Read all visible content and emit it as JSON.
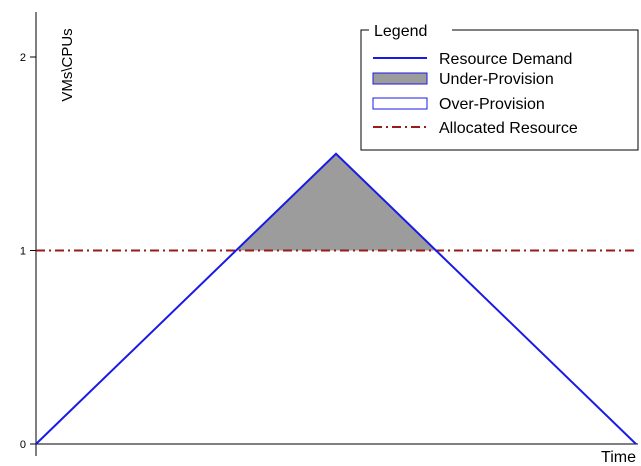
{
  "chart_data": {
    "type": "area",
    "title": "",
    "xlabel": "Time",
    "ylabel": "VMs\\CPUs",
    "ylim": [
      0,
      2.2
    ],
    "yticks": [
      0,
      1,
      2
    ],
    "grid": false,
    "legend_position": "top-right",
    "legend_title": "Legend",
    "legend_entries": [
      "Resource Demand",
      "Under-Provision",
      "Over-Provision",
      "Allocated Resource"
    ],
    "demand": {
      "name": "Resource Demand",
      "x": [
        0,
        0.5,
        1
      ],
      "y": [
        0,
        1.5,
        0
      ]
    },
    "allocated": {
      "name": "Allocated Resource",
      "value": 1
    },
    "under_provision": {
      "name": "Under-Provision",
      "x": [
        0.333,
        0.5,
        0.667
      ],
      "y": [
        1,
        1.5,
        1
      ]
    }
  },
  "colors": {
    "demand": "#1a1ae6",
    "allocated": "#9b1a1a",
    "under_fill": "#9c9c9c",
    "over_fill": "#ffffff",
    "axis": "#000000"
  }
}
